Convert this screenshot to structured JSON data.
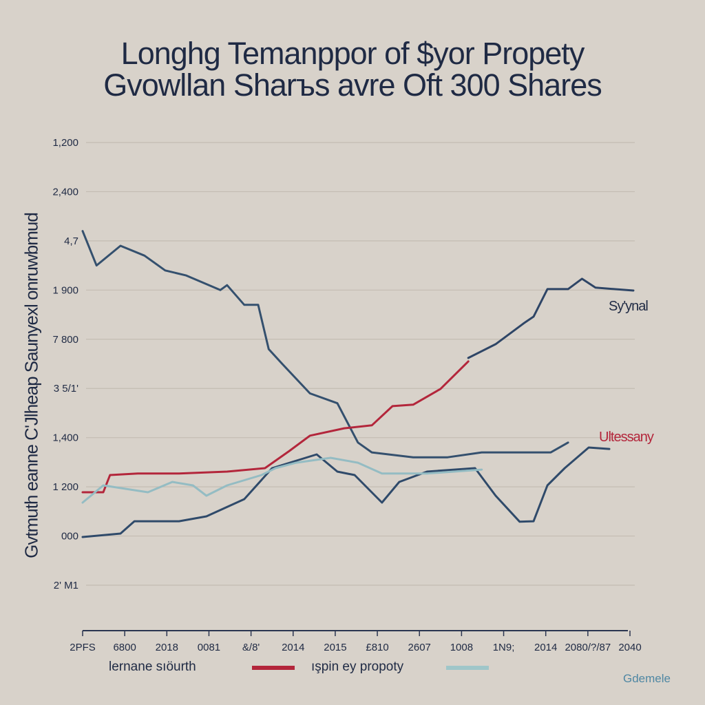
{
  "chart_data": {
    "type": "line",
    "title": [
      "Longhg Temanppor of $yor Propety",
      "Gvowllan Sharъs  avre Oft  300 Shares"
    ],
    "ylabel": "Gvtmuth eanne C'Jlheap Saunyexl onruwbmud",
    "xlabel": "",
    "x_tick_labels": [
      "2PFS",
      "6800",
      "2018",
      "0081",
      "&/8'",
      "2014",
      "2015",
      "£810",
      "2607",
      "1008",
      "1N9;",
      "2014",
      "2080/?/87",
      "2040"
    ],
    "y_tick_labels": [
      "2' M1",
      "000",
      "1 200",
      "1,400",
      "3 5/1'",
      "7 800",
      "1 900",
      "4,7",
      "2,400",
      "1,200"
    ],
    "xlim": [
      0,
      13
    ],
    "ylim": [
      0,
      9
    ],
    "grid": true,
    "series": [
      {
        "color": "#34506e",
        "x": [
          0,
          0.33,
          0.9,
          1.47,
          1.96,
          2.45,
          3.27,
          3.43,
          3.84,
          4.17,
          4.42,
          4.74,
          5.4,
          6.05,
          6.54,
          6.87,
          7.85,
          8.67,
          9.48,
          10.47,
          11.12,
          11.53
        ],
        "y": [
          7.2,
          6.5,
          6.9,
          6.7,
          6.4,
          6.3,
          6.0,
          6.1,
          5.7,
          5.7,
          4.8,
          4.5,
          3.9,
          3.7,
          2.9,
          2.7,
          2.6,
          2.6,
          2.7,
          2.7,
          2.7,
          2.9
        ]
      },
      {
        "color": "#2f4a6a",
        "x": [
          0,
          0.9,
          1.23,
          2.29,
          2.94,
          3.84,
          4.5,
          5.56,
          6.05,
          6.46,
          7.11,
          7.52,
          8.18,
          9.32,
          9.81,
          10.38,
          10.71,
          11.04,
          11.45,
          12.02,
          12.51
        ],
        "y": [
          0.98,
          1.05,
          1.3,
          1.3,
          1.4,
          1.75,
          2.38,
          2.66,
          2.31,
          2.24,
          1.68,
          2.1,
          2.31,
          2.38,
          1.82,
          1.29,
          1.3,
          2.03,
          2.38,
          2.8,
          2.77
        ]
      },
      {
        "color": "#b3263b",
        "x": [
          0,
          0.49,
          0.65,
          1.31,
          2.29,
          3.43,
          4.33,
          4.91,
          5.4,
          6.21,
          6.87,
          7.36,
          7.85,
          8.5,
          9.16
        ],
        "y": [
          1.89,
          1.89,
          2.24,
          2.27,
          2.27,
          2.31,
          2.38,
          2.73,
          3.04,
          3.19,
          3.25,
          3.64,
          3.67,
          3.99,
          4.55
        ]
      },
      {
        "color": "#2e4566",
        "x": [
          9.16,
          9.81,
          10.47,
          10.71,
          11.04,
          11.53,
          11.86,
          12.18,
          13.08
        ],
        "y": [
          4.62,
          4.9,
          5.32,
          5.46,
          6.02,
          6.02,
          6.23,
          6.05,
          5.99
        ]
      },
      {
        "color": "#94bcc3",
        "x": [
          0,
          0.49,
          1.55,
          2.13,
          2.62,
          2.94,
          3.43,
          4.25,
          4.58,
          5.07,
          5.89,
          6.54,
          7.11,
          8.18,
          9.48
        ],
        "y": [
          1.68,
          2.03,
          1.89,
          2.1,
          2.03,
          1.82,
          2.03,
          2.24,
          2.38,
          2.49,
          2.59,
          2.49,
          2.27,
          2.27,
          2.35
        ]
      }
    ],
    "annotations": [
      {
        "text": "Sy'ynal",
        "color": "#2a3550"
      },
      {
        "text": "Ultessany",
        "color": "#b3263b"
      }
    ],
    "legend": {
      "placement": "bottom",
      "entries": [
        {
          "label": "lernane sıöurth",
          "color": "#b3263b"
        },
        {
          "label": "ışpin ey propoty",
          "color": "#9fc6c9"
        }
      ]
    },
    "watermark": "Gdemele"
  }
}
